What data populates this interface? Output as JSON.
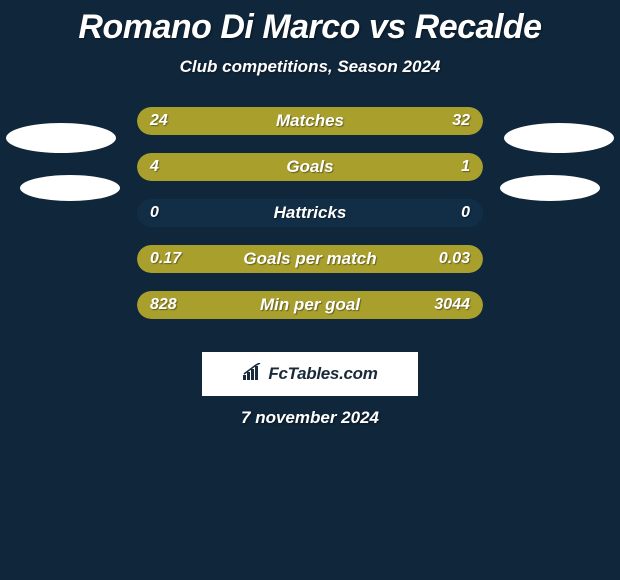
{
  "page": {
    "background_color": "#10273b",
    "text_color": "#ffffff",
    "title": "Romano Di Marco vs Recalde",
    "subtitle": "Club competitions, Season 2024",
    "title_fontsize": 34,
    "subtitle_fontsize": 17,
    "date": "7 november 2024"
  },
  "players": {
    "left_color": "#a99f2d",
    "right_color": "#a99f2d",
    "empty_track_color": "#122e46"
  },
  "stats": [
    {
      "label": "Matches",
      "left_val": "24",
      "right_val": "32",
      "left_pct": 42.9,
      "right_pct": 57.1
    },
    {
      "label": "Goals",
      "left_val": "4",
      "right_val": "1",
      "left_pct": 80.0,
      "right_pct": 20.0
    },
    {
      "label": "Hattricks",
      "left_val": "0",
      "right_val": "0",
      "left_pct": 0.0,
      "right_pct": 0.0
    },
    {
      "label": "Goals per match",
      "left_val": "0.17",
      "right_val": "0.03",
      "left_pct": 85.0,
      "right_pct": 15.0
    },
    {
      "label": "Min per goal",
      "left_val": "828",
      "right_val": "3044",
      "left_pct": 21.4,
      "right_pct": 78.6
    }
  ],
  "credit": {
    "label": "FcTables.com",
    "box_bg": "#ffffff",
    "text_color": "#1a2a3a"
  }
}
